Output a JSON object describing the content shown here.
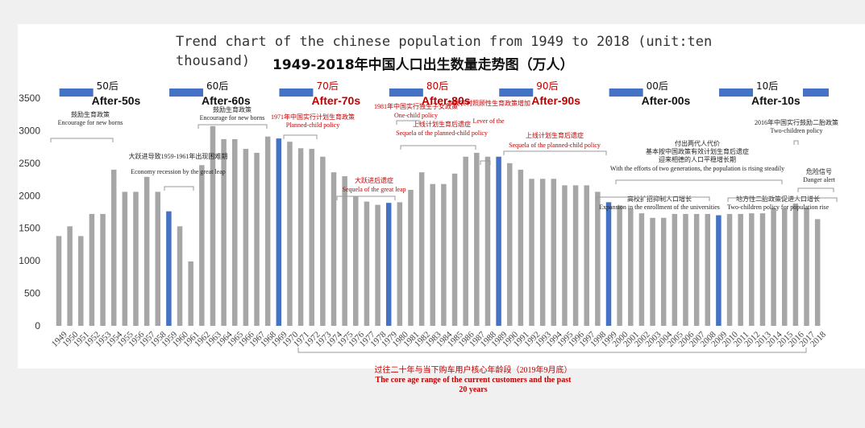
{
  "title_en": "Trend chart of the chinese population from 1949 to 2018 (unit:ten thousand)",
  "title_cn": "1949-2018年中国人口出生数量走势图（万人）",
  "colors": {
    "bar": "#a6a6a6",
    "highlight": "#4472c4",
    "red": "#c00000",
    "black": "#222222",
    "band": "#4472c4"
  },
  "generations": [
    {
      "cn": "50后",
      "en": "After-50s",
      "color": "#111111"
    },
    {
      "cn": "60后",
      "en": "After-60s",
      "color": "#111111"
    },
    {
      "cn": "70后",
      "en": "After-70s",
      "color": "#c00000"
    },
    {
      "cn": "80后",
      "en": "After-80s",
      "color": "#c00000"
    },
    {
      "cn": "90后",
      "en": "After-90s",
      "color": "#c00000"
    },
    {
      "cn": "00后",
      "en": "After-00s",
      "color": "#111111"
    },
    {
      "cn": "10后",
      "en": "After-10s",
      "color": "#111111"
    }
  ],
  "annotations": [
    {
      "cn": "鼓励生育政策",
      "en": "Encourage for new borns",
      "color": "#222222"
    },
    {
      "cn": "鼓励生育政策",
      "en": "Encourage for new borns",
      "color": "#222222"
    },
    {
      "cn": "大跃进导致1959-1961年出现困难期",
      "en": "Economy recession by the great leap",
      "color": "#222222"
    },
    {
      "cn": "1971年中国实行计划生育政策",
      "en": "Planned-child policy",
      "color": "#c00000"
    },
    {
      "cn": "大跃进后遗症",
      "en": "Sequela of the great leap",
      "color": "#c00000"
    },
    {
      "cn": "1981年中国实行独生子女政策",
      "en": "One-child policy",
      "color": "#c00000"
    },
    {
      "cn": "上线计划生育后遗症",
      "en": "Sequela of the planned-child policy",
      "color": "#c00000"
    },
    {
      "cn": "多数农村照顾性生育政策增加",
      "en": "Lever of the",
      "color": "#c00000"
    },
    {
      "cn": "上线计划生育后遗症",
      "en": "Sequela of the planned-child policy",
      "color": "#c00000"
    },
    {
      "cn": "付出两代人代价 基本按中国政策有效计划生育后遗症 迎来相德的人口平稳增长期",
      "en": "With the efforts of two generations, the population is rising steadily",
      "color": "#222222"
    },
    {
      "cn": "2016年中国实行鼓励二胎政策",
      "en": "Two-children policy",
      "color": "#222222"
    },
    {
      "cn": "危险信号",
      "en": "Danger alert",
      "color": "#222222"
    },
    {
      "cn": "高校扩招抑制人口增长",
      "en": "Expansion in the enrollment of the universities",
      "color": "#222222"
    },
    {
      "cn": "地方性二胎政策促进人口增长",
      "en": "Two-children policy for population rise",
      "color": "#222222"
    }
  ],
  "footer": {
    "cn": "过往二十年与当下购车用户核心年龄段（2019年9月底）",
    "en": "The core age range of the current customers and the past 20 years"
  },
  "chart_data": {
    "type": "bar",
    "title": "Trend chart of the chinese population from 1949 to 2018 (unit:ten thousand)",
    "xlabel": "",
    "ylabel": "",
    "ylim": [
      0,
      3500
    ],
    "yticks": [
      0,
      500,
      1000,
      1500,
      2000,
      2500,
      3000,
      3500
    ],
    "categories": [
      "1949",
      "1950",
      "1951",
      "1952",
      "1953",
      "1954",
      "1955",
      "1956",
      "1957",
      "1958",
      "1959",
      "1960",
      "1961",
      "1962",
      "1963",
      "1964",
      "1965",
      "1966",
      "1967",
      "1968",
      "1969",
      "1970",
      "1971",
      "1972",
      "1973",
      "1974",
      "1975",
      "1976",
      "1977",
      "1978",
      "1979",
      "1980",
      "1981",
      "1982",
      "1983",
      "1984",
      "1985",
      "1986",
      "1987",
      "1988",
      "1989",
      "1990",
      "1991",
      "1992",
      "1993",
      "1994",
      "1995",
      "1996",
      "1997",
      "1998",
      "1999",
      "2000",
      "2001",
      "2002",
      "2003",
      "2004",
      "2005",
      "2006",
      "2007",
      "2008",
      "2009",
      "2010",
      "2011",
      "2012",
      "2013",
      "2014",
      "2015",
      "2016",
      "2017",
      "2018"
    ],
    "values": [
      1380,
      1530,
      1380,
      1720,
      1720,
      2400,
      2060,
      2060,
      2290,
      2060,
      1760,
      1530,
      990,
      2470,
      3070,
      2870,
      2870,
      2720,
      2660,
      2910,
      2880,
      2830,
      2730,
      2720,
      2600,
      2360,
      2300,
      1990,
      1910,
      1860,
      1890,
      1900,
      2090,
      2360,
      2180,
      2180,
      2340,
      2600,
      2660,
      2600,
      2600,
      2500,
      2400,
      2260,
      2260,
      2260,
      2160,
      2160,
      2160,
      2060,
      1900,
      1850,
      1800,
      1730,
      1660,
      1660,
      1720,
      1720,
      1720,
      1720,
      1700,
      1720,
      1720,
      1730,
      1730,
      1810,
      1800,
      1880,
      1810,
      1640
    ],
    "highlighted": [
      "1959",
      "1969",
      "1979",
      "1989",
      "1999",
      "2009"
    ],
    "grid": false,
    "legend": "none"
  }
}
